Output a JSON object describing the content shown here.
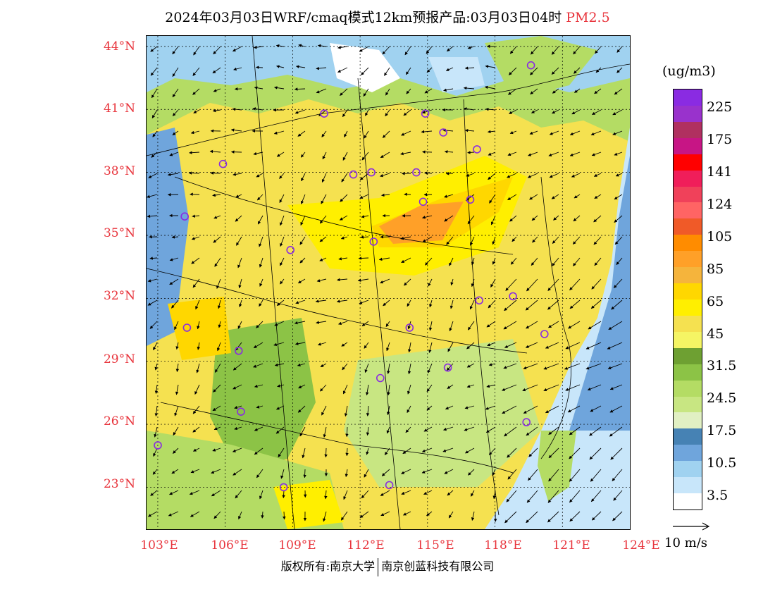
{
  "title": {
    "main": "2024年03月03日WRF/cmaq模式12km预报产品:03月03日04时",
    "pollutant": "PM2.5"
  },
  "axes": {
    "lat_labels": [
      "44°N",
      "41°N",
      "38°N",
      "35°N",
      "32°N",
      "29°N",
      "26°N",
      "23°N"
    ],
    "lon_labels": [
      "103°E",
      "106°E",
      "109°E",
      "112°E",
      "115°E",
      "118°E",
      "121°E",
      "124°E"
    ],
    "lat_range": [
      21.0,
      44.5
    ],
    "lon_range": [
      102.5,
      124.0
    ]
  },
  "colorbar": {
    "unit": "(ug/m3)",
    "labels": [
      "225",
      "175",
      "141",
      "124",
      "105",
      "85",
      "65",
      "45",
      "31.5",
      "24.5",
      "17.5",
      "10.5",
      "3.5"
    ],
    "colors_top_to_bottom": [
      "#8a2be2",
      "#9932cc",
      "#b03060",
      "#c71585",
      "#ff0000",
      "#f01e5a",
      "#f0415a",
      "#ff6464",
      "#f05a28",
      "#ff8c00",
      "#ffa028",
      "#f5b43c",
      "#ffd700",
      "#ffef00",
      "#f5e150",
      "#f5f564",
      "#6ea032",
      "#8cc346",
      "#b4dc64",
      "#c8e682",
      "#e1f0c3",
      "#4682b4",
      "#6fa5dc",
      "#a0d2f0",
      "#c8e6fa",
      "#ffffff"
    ]
  },
  "wind_scale": {
    "label": "10 m/s"
  },
  "footer": {
    "left": "版权所有:南京大学",
    "right": "南京创蓝科技有限公司"
  },
  "stations": [
    [
      103.0,
      25.0
    ],
    [
      104.2,
      35.9
    ],
    [
      104.3,
      30.6
    ],
    [
      105.9,
      38.4
    ],
    [
      106.6,
      29.5
    ],
    [
      106.7,
      26.6
    ],
    [
      108.6,
      23.0
    ],
    [
      108.9,
      34.3
    ],
    [
      110.4,
      40.8
    ],
    [
      111.7,
      37.9
    ],
    [
      112.9,
      28.2
    ],
    [
      112.6,
      34.7
    ],
    [
      112.5,
      38.0
    ],
    [
      114.2,
      30.6
    ],
    [
      114.5,
      38.0
    ],
    [
      114.9,
      40.8
    ],
    [
      114.8,
      36.6
    ],
    [
      115.9,
      28.7
    ],
    [
      115.7,
      39.9
    ],
    [
      116.9,
      36.7
    ],
    [
      117.3,
      31.9
    ],
    [
      117.2,
      39.1
    ],
    [
      118.8,
      32.1
    ],
    [
      119.4,
      26.1
    ],
    [
      120.2,
      30.3
    ],
    [
      119.6,
      43.1
    ],
    [
      113.3,
      23.1
    ]
  ]
}
